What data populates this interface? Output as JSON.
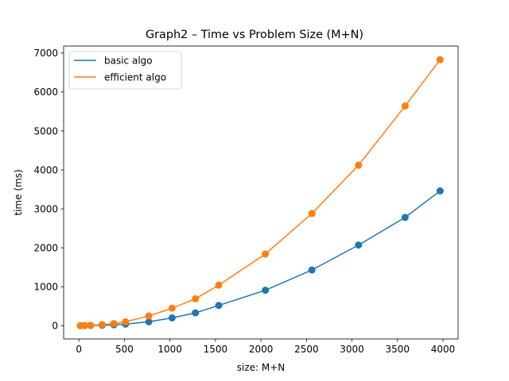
{
  "chart_data": {
    "type": "line",
    "title": "Graph2 – Time vs Problem Size (M+N)",
    "xlabel": "size: M+N",
    "ylabel": "time (ms)",
    "xlim": [
      -168,
      4166
    ],
    "ylim": [
      -340,
      7180
    ],
    "xticks": [
      0,
      500,
      1000,
      1500,
      2000,
      2500,
      3000,
      3500,
      4000
    ],
    "yticks": [
      0,
      1000,
      2000,
      3000,
      4000,
      5000,
      6000,
      7000
    ],
    "legend_position": "top-left",
    "grid": false,
    "series": [
      {
        "name": "basic algo",
        "color": "#1f77b4",
        "x": [
          16,
          64,
          128,
          256,
          384,
          512,
          768,
          1024,
          1280,
          1536,
          2048,
          2560,
          3072,
          3584,
          3968
        ],
        "y": [
          1,
          2,
          4,
          10,
          22,
          40,
          100,
          200,
          330,
          520,
          910,
          1430,
          2070,
          2780,
          3460
        ]
      },
      {
        "name": "efficient algo",
        "color": "#ff7f0e",
        "x": [
          16,
          64,
          128,
          256,
          384,
          512,
          768,
          1024,
          1280,
          1536,
          2048,
          2560,
          3072,
          3584,
          3968
        ],
        "y": [
          2,
          5,
          10,
          25,
          55,
          100,
          250,
          450,
          690,
          1040,
          1840,
          2880,
          4120,
          5640,
          6830
        ]
      }
    ]
  }
}
